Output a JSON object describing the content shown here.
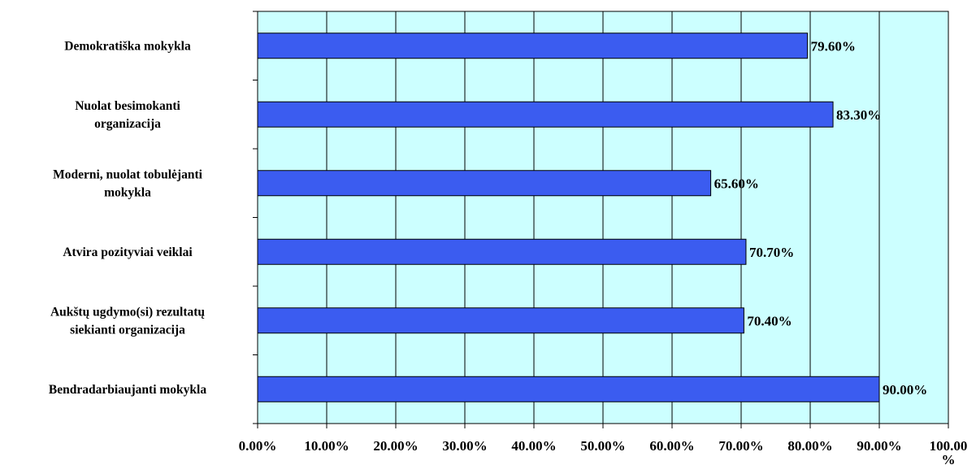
{
  "chart_data": {
    "type": "bar",
    "orientation": "horizontal",
    "categories": [
      [
        "Demokratiška mokykla"
      ],
      [
        "Nuolat besimokanti",
        "organizacija"
      ],
      [
        "Moderni, nuolat tobulėjanti",
        "mokykla"
      ],
      [
        "Atvira pozityviai veiklai"
      ],
      [
        "Aukštų ugdymo(si) rezultatų",
        "siekianti organizacija"
      ],
      [
        "Bendradarbiaujanti mokykla"
      ]
    ],
    "values": [
      79.6,
      83.3,
      65.6,
      70.7,
      70.4,
      90.0
    ],
    "data_labels": [
      "79.60%",
      "83.30%",
      "65.60%",
      "70.70%",
      "70.40%",
      "90.00%"
    ],
    "x_ticks": [
      [
        "0.00%"
      ],
      [
        "10.00%"
      ],
      [
        "20.00%"
      ],
      [
        "30.00%"
      ],
      [
        "40.00%"
      ],
      [
        "50.00%"
      ],
      [
        "60.00%"
      ],
      [
        "70.00%"
      ],
      [
        "80.00%"
      ],
      [
        "90.00%"
      ],
      [
        "100.00",
        "%"
      ]
    ],
    "xlim": [
      0,
      100
    ],
    "grid": "vertical",
    "legend": "none",
    "colors": {
      "plot_background": "#ccffff",
      "bar_fill": "#3b5cf0",
      "bar_stroke": "#000000",
      "grid": "#000000"
    }
  }
}
